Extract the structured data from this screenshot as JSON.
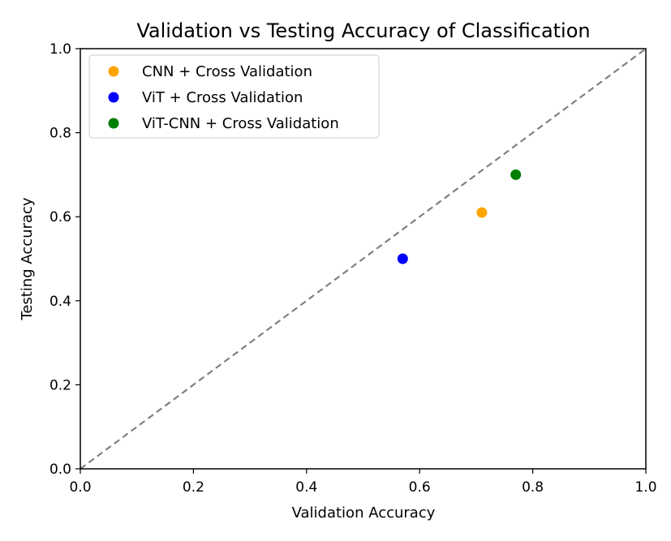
{
  "chart_data": {
    "type": "scatter",
    "title": "Validation vs Testing Accuracy of Classification",
    "xlabel": "Validation Accuracy",
    "ylabel": "Testing Accuracy",
    "xlim": [
      0.0,
      1.0
    ],
    "ylim": [
      0.0,
      1.0
    ],
    "xticks": [
      "0.0",
      "0.2",
      "0.4",
      "0.6",
      "0.8",
      "1.0"
    ],
    "yticks": [
      "0.0",
      "0.2",
      "0.4",
      "0.6",
      "0.8",
      "1.0"
    ],
    "grid": false,
    "legend_position": "top-left",
    "reference_line": {
      "style": "dashed",
      "color": "#808080",
      "from": [
        0.0,
        0.0
      ],
      "to": [
        1.0,
        1.0
      ]
    },
    "series": [
      {
        "name": "CNN + Cross Validation",
        "color": "#FFA500",
        "points": [
          {
            "x": 0.71,
            "y": 0.61
          }
        ]
      },
      {
        "name": "ViT + Cross Validation",
        "color": "#0000FF",
        "points": [
          {
            "x": 0.57,
            "y": 0.5
          }
        ]
      },
      {
        "name": "ViT-CNN + Cross Validation",
        "color": "#008000",
        "points": [
          {
            "x": 0.77,
            "y": 0.7
          }
        ]
      }
    ]
  }
}
